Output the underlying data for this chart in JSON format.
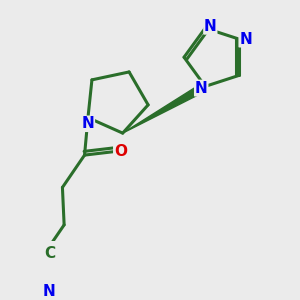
{
  "background_color": "#ebebeb",
  "bond_color": "#2a6e2a",
  "bond_width": 2.2,
  "atom_colors": {
    "N": "#0000ee",
    "O": "#dd0000",
    "C": "#2a6e2a"
  }
}
